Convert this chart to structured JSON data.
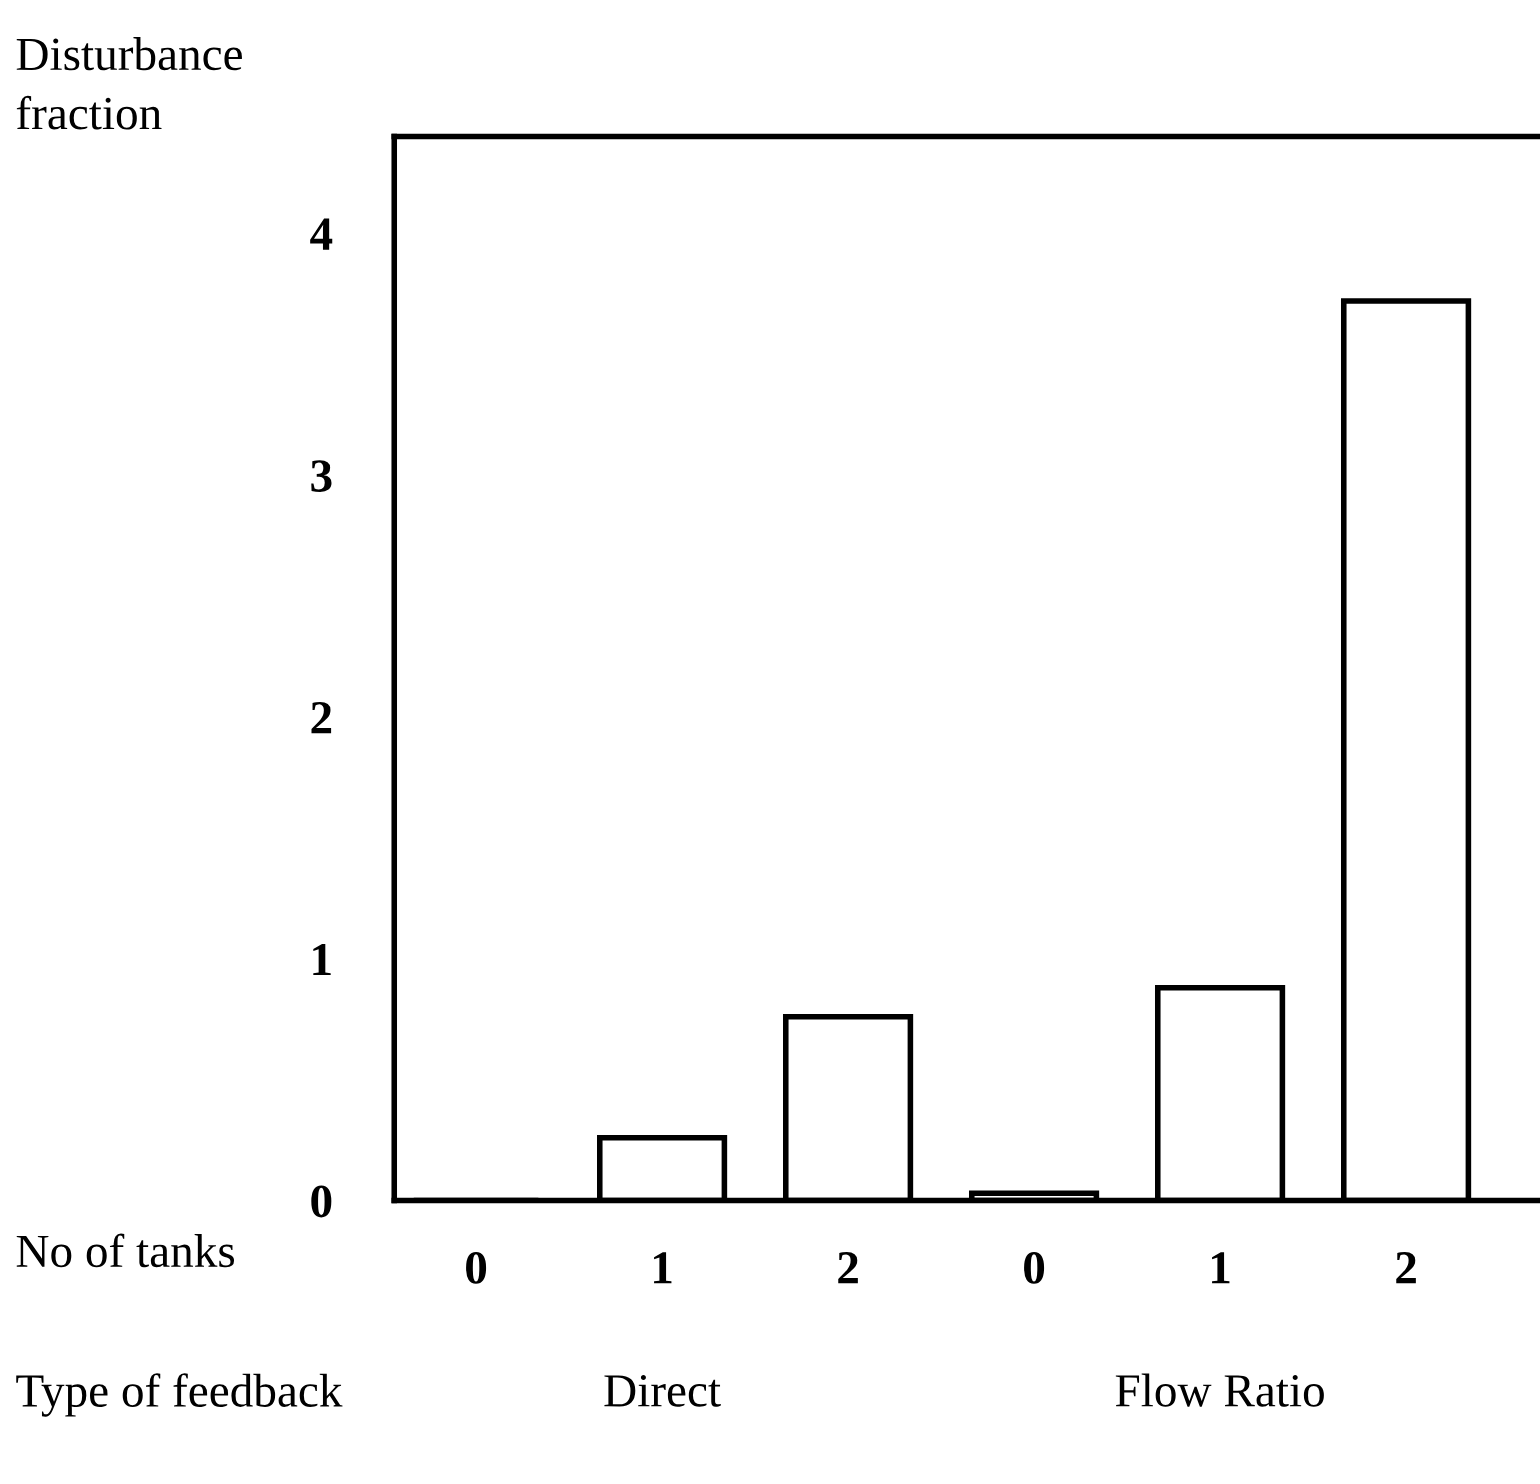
{
  "chart_data": {
    "type": "bar",
    "ylabel": "Disturbance fraction",
    "xlabel": "No of tanks",
    "categories": [
      "0",
      "1",
      "2",
      "0",
      "1",
      "2"
    ],
    "values": [
      0,
      0.26,
      0.76,
      0.03,
      0.88,
      3.72
    ],
    "color": "#ffffff",
    "ylim": [
      0,
      4.4
    ],
    "yticks": [
      0,
      1,
      2,
      3,
      4
    ],
    "annotations": [
      "Type of feedback",
      "Direct",
      "Flow Ratio"
    ],
    "grid": false,
    "legend": false
  }
}
